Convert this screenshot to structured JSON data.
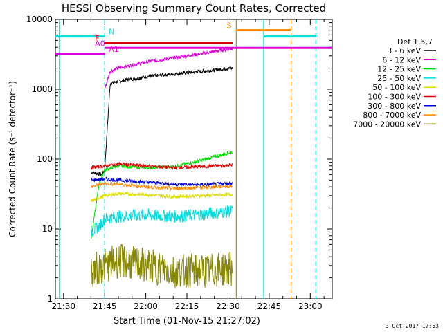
{
  "chart_data": {
    "type": "line",
    "title": "HESSI Observing Summary Count Rates, Corrected",
    "xlabel": "Start Time (01-Nov-15 21:27:02)",
    "ylabel": "Corrected Count Rate (s⁻¹ detector⁻¹)",
    "yscale": "log",
    "ylim": [
      1,
      10000
    ],
    "xlim": [
      "21:27:02",
      "23:08:00"
    ],
    "x_ticks": [
      "21:30",
      "21:45",
      "22:00",
      "22:15",
      "22:30",
      "22:45",
      "23:00"
    ],
    "y_ticks": [
      "1",
      "10",
      "100",
      "1000",
      "10000"
    ],
    "legend_title": "Det 1,5,7",
    "legend_position": "right",
    "grid": false,
    "series": [
      {
        "name": "3 - 6 keV",
        "color": "#000000",
        "start": "21:40:00",
        "end": "22:31:40",
        "x": [
          "21:40",
          "21:44",
          "21:45",
          "21:47",
          "21:50",
          "22:00",
          "22:10",
          "22:20",
          "22:31"
        ],
        "values": [
          65,
          60,
          70,
          1200,
          1300,
          1500,
          1650,
          1800,
          2000
        ]
      },
      {
        "name": "6 - 12 keV",
        "color": "#dd00dd",
        "start": "21:45:00",
        "end": "22:31:40",
        "x": [
          "21:45",
          "21:47",
          "21:50",
          "22:00",
          "22:10",
          "22:20",
          "22:31"
        ],
        "values": [
          1000,
          1800,
          2000,
          2450,
          2800,
          3200,
          3800
        ]
      },
      {
        "name": "12 - 25 keV",
        "color": "#00dd00",
        "start": "21:40:00",
        "end": "22:31:40",
        "x": [
          "21:40",
          "21:43",
          "21:45",
          "21:50",
          "22:00",
          "22:10",
          "22:20",
          "22:31"
        ],
        "values": [
          7,
          45,
          70,
          80,
          75,
          78,
          95,
          125
        ]
      },
      {
        "name": "25 - 50 keV",
        "color": "#00dddd",
        "start": "21:40:00",
        "end": "22:31:40",
        "x": [
          "21:40",
          "21:43",
          "21:45",
          "21:50",
          "22:00",
          "22:10",
          "22:20",
          "22:31"
        ],
        "values": [
          9,
          11,
          14,
          15,
          16,
          15,
          16,
          18
        ]
      },
      {
        "name": "50 - 100 keV",
        "color": "#dddd00",
        "start": "21:40:00",
        "end": "22:31:40",
        "x": [
          "21:40",
          "21:45",
          "21:50",
          "22:00",
          "22:10",
          "22:20",
          "22:31"
        ],
        "values": [
          25,
          30,
          32,
          31,
          29,
          30,
          31
        ]
      },
      {
        "name": "100 - 300 keV",
        "color": "#dd0000",
        "start": "21:40:00",
        "end": "22:31:40",
        "x": [
          "21:40",
          "21:45",
          "21:50",
          "22:00",
          "22:10",
          "22:20",
          "22:31"
        ],
        "values": [
          75,
          80,
          85,
          80,
          75,
          78,
          82
        ]
      },
      {
        "name": "300 - 800 keV",
        "color": "#0000dd",
        "start": "21:40:00",
        "end": "22:31:40",
        "x": [
          "21:40",
          "21:45",
          "21:50",
          "22:00",
          "22:10",
          "22:20",
          "22:31"
        ],
        "values": [
          50,
          52,
          50,
          47,
          44,
          43,
          45
        ]
      },
      {
        "name": "800 - 7000 keV",
        "color": "#ff8800",
        "start": "21:40:00",
        "end": "22:31:40",
        "x": [
          "21:40",
          "21:45",
          "21:50",
          "22:00",
          "22:10",
          "22:20",
          "22:31"
        ],
        "values": [
          40,
          45,
          44,
          40,
          38,
          39,
          41
        ]
      },
      {
        "name": "7000 - 20000 keV",
        "color": "#888800",
        "start": "21:40:00",
        "end": "22:31:40",
        "x": [
          "21:40",
          "21:45",
          "21:50",
          "22:00",
          "22:10",
          "22:20",
          "22:31"
        ],
        "values": [
          2.5,
          3,
          3.5,
          3,
          2.5,
          2.5,
          2.7
        ]
      }
    ],
    "annotations": [
      {
        "label": "N",
        "color": "#00dddd",
        "segments": [
          [
            "21:27:02",
            "21:45:00"
          ],
          [
            "22:43:00",
            "23:02:00"
          ]
        ],
        "y": 5700
      },
      {
        "label": "F",
        "color": "#dd0000",
        "segments": [
          [
            "21:45:00",
            "22:31:40"
          ]
        ],
        "y": 4600
      },
      {
        "label": "A0",
        "color": "#dd00dd",
        "segments": [
          [
            "21:45:00",
            "23:08:00"
          ]
        ],
        "y": 3900
      },
      {
        "label": "A1",
        "color": "#dd00dd",
        "segments": [
          [
            "21:27:02",
            "21:45:00"
          ]
        ],
        "y": 3200
      },
      {
        "label": "S",
        "color": "#ff8800",
        "segments": [
          [
            "22:33:00",
            "22:53:00"
          ]
        ],
        "y": 7000
      }
    ],
    "vlines": [
      {
        "x": "21:28:30",
        "color": "#00dddd",
        "style": "solid"
      },
      {
        "x": "21:45:00",
        "color": "#00dddd",
        "style": "dashed"
      },
      {
        "x": "22:33:00",
        "color": "#b8860b",
        "style": "solid"
      },
      {
        "x": "22:43:00",
        "color": "#00dddd",
        "style": "solid"
      },
      {
        "x": "22:53:00",
        "color": "#ff8800",
        "style": "dashed"
      },
      {
        "x": "23:02:00",
        "color": "#00dddd",
        "style": "dashed"
      }
    ]
  },
  "footer_text": "3-Oct-2017 17:53"
}
